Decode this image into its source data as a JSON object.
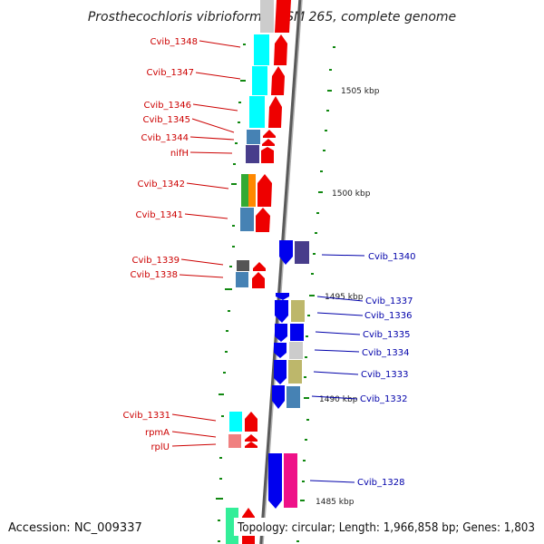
{
  "title": "Prosthecochloris vibrioformis DSM 265, complete genome",
  "accession": "Accession: NC_009337",
  "summary": "Topology: circular; Length: 1,966,858 bp; Genes: 1,803",
  "ticks": [
    "1505 kbp",
    "1500 kbp",
    "1495 kbp",
    "1490 kbp",
    "1485 kbp"
  ],
  "left_labels": [
    "Cvib_1348",
    "Cvib_1347",
    "Cvib_1346",
    "Cvib_1345",
    "Cvib_1344",
    "nifH",
    "Cvib_1342",
    "Cvib_1341",
    "Cvib_1339",
    "Cvib_1338",
    "Cvib_1331",
    "rpmA",
    "rplU"
  ],
  "right_labels": [
    "Cvib_1340",
    "Cvib_1337",
    "Cvib_1336",
    "Cvib_1335",
    "Cvib_1334",
    "Cvib_1333",
    "Cvib_1332",
    "Cvib_1328"
  ],
  "colors": {
    "forward_label": "#cc0000",
    "reverse_label": "#0000aa",
    "forward_arrow": "#ee0000",
    "reverse_arrow": "#0000ee",
    "tick": "#118811",
    "backbone": "#777777",
    "cyan": "#00ffff",
    "steelblue": "#4682b4",
    "slateblue": "#483d8b",
    "khaki": "#bdb76b",
    "silver": "#cccccc",
    "magenta": "#ee1188",
    "green": "#33aa33",
    "orange": "#ff8800",
    "gray": "#555555",
    "salmon": "#f08080"
  }
}
